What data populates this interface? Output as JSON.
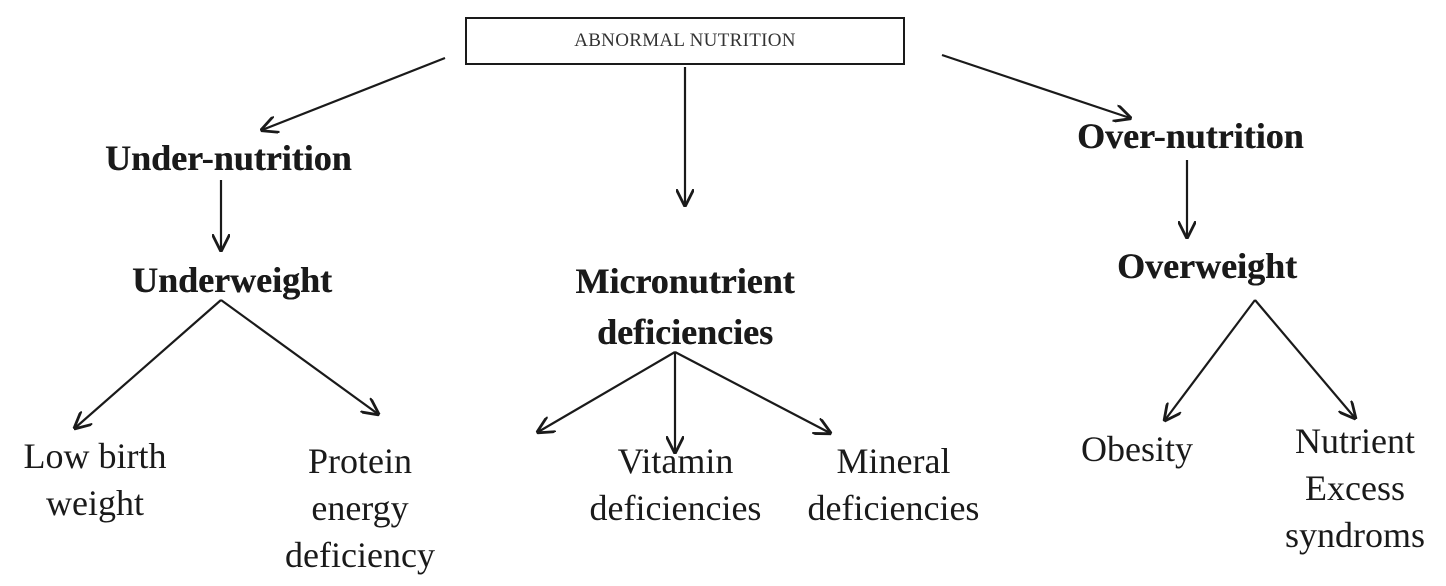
{
  "root": {
    "label": "ABNORMAL NUTRITION"
  },
  "under": {
    "label": "Under-nutrition",
    "child": "Underweight",
    "leaves": [
      {
        "lines": [
          "Low birth",
          "weight"
        ]
      },
      {
        "lines": [
          "Protein",
          "energy",
          "deficiency"
        ]
      }
    ]
  },
  "micro": {
    "lines": [
      "Micronutrient",
      "deficiencies"
    ],
    "leaves": [
      {
        "lines": [
          "Vitamin",
          "deficiencies"
        ]
      },
      {
        "lines": [
          "Mineral",
          "deficiencies"
        ]
      }
    ]
  },
  "over": {
    "label": "Over-nutrition",
    "child": "Overweight",
    "leaves": [
      {
        "lines": [
          "Obesity"
        ]
      },
      {
        "lines": [
          "Nutrient",
          "Excess",
          "syndroms"
        ]
      }
    ]
  }
}
